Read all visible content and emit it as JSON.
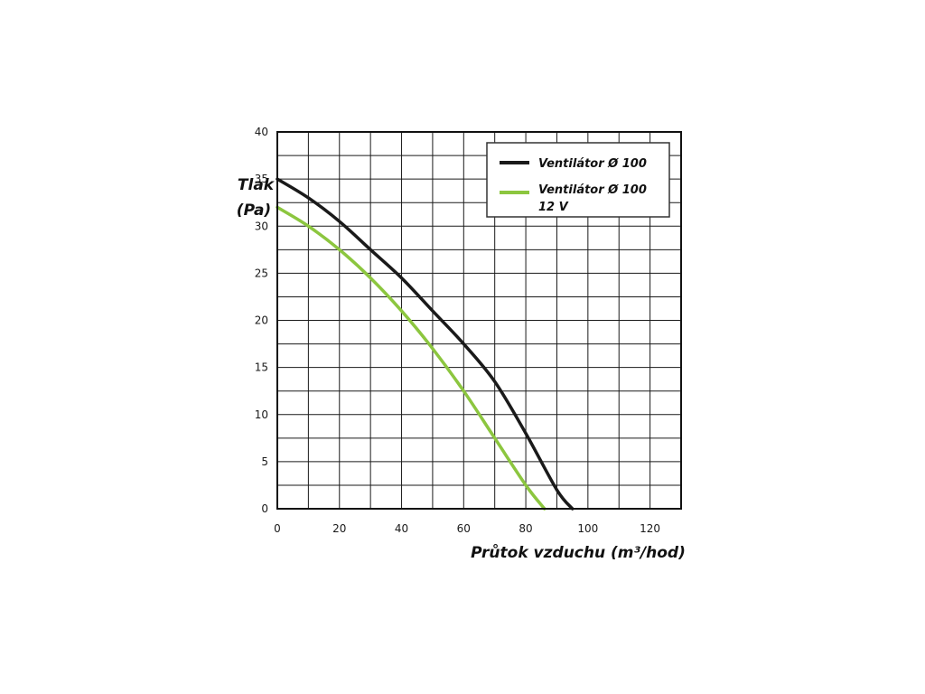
{
  "chart_data": {
    "type": "line",
    "xlabel": "Průtok vzduchu (m³/hod)",
    "ylabel_line1": "Tlak",
    "ylabel_line2": "(Pa)",
    "xlim": [
      0,
      130
    ],
    "ylim": [
      0,
      40
    ],
    "x_ticks": [
      0,
      20,
      40,
      60,
      80,
      100,
      120
    ],
    "y_ticks": [
      0,
      5,
      10,
      15,
      20,
      25,
      30,
      35,
      40
    ],
    "x_minor_step": 10,
    "y_minor_step": 2.5,
    "grid": true,
    "legend_position": "top-right",
    "series": [
      {
        "name": "Ventilátor Ø 100",
        "color": "#1a1a1a",
        "x": [
          0,
          10,
          20,
          30,
          40,
          50,
          60,
          70,
          80,
          90,
          95
        ],
        "y": [
          35,
          33,
          30.5,
          27.5,
          24.5,
          21,
          17.5,
          13.5,
          8,
          2,
          0
        ]
      },
      {
        "name": "Ventilátor Ø 100",
        "name_line2": "12 V",
        "color": "#8cc63f",
        "x": [
          0,
          10,
          20,
          30,
          40,
          50,
          60,
          70,
          80,
          86
        ],
        "y": [
          32,
          30,
          27.5,
          24.5,
          21,
          17,
          12.5,
          7.5,
          2.5,
          0
        ]
      }
    ]
  }
}
